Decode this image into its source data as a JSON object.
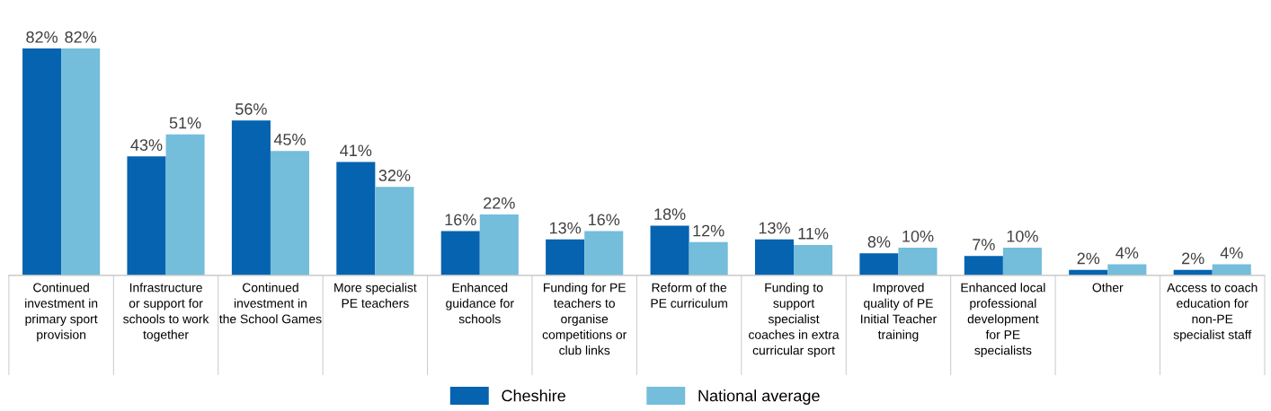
{
  "chart_data": {
    "type": "bar",
    "categories": [
      "Continued\ninvestment in\nprimary sport\nprovision",
      "Infrastructure\nor support for\nschools to work\ntogether",
      "Continued\ninvestment in\nthe School Games",
      "More specialist\nPE teachers",
      "Enhanced\nguidance for\nschools",
      "Funding for PE\nteachers to\norganise\ncompetitions or\nclub links",
      "Reform of the\nPE curriculum",
      "Funding to\nsupport\nspecialist\ncoaches in extra\ncurricular sport",
      "Improved\nquality of PE\nInitial Teacher\ntraining",
      "Enhanced local\nprofessional\ndevelopment\nfor PE\nspecialists",
      "Other",
      "Access to coach\neducation for\nnon-PE\nspecialist staff"
    ],
    "series": [
      {
        "name": "Cheshire",
        "color": "#0563b0",
        "values": [
          82,
          43,
          56,
          41,
          16,
          13,
          18,
          13,
          8,
          7,
          2,
          2
        ],
        "value_labels": [
          "82%",
          "43%",
          "56%",
          "41%",
          "16%",
          "13%",
          "18%",
          "13%",
          "8%",
          "7%",
          "2%",
          "2%"
        ]
      },
      {
        "name": "National average",
        "color": "#74bddb",
        "values": [
          82,
          51,
          45,
          32,
          22,
          16,
          12,
          11,
          10,
          10,
          4,
          4
        ],
        "value_labels": [
          "82%",
          "51%",
          "45%",
          "32%",
          "22%",
          "16%",
          "12%",
          "11%",
          "10%",
          "10%",
          "4%",
          "4%"
        ]
      }
    ],
    "legend": "bottom",
    "grid": false
  }
}
